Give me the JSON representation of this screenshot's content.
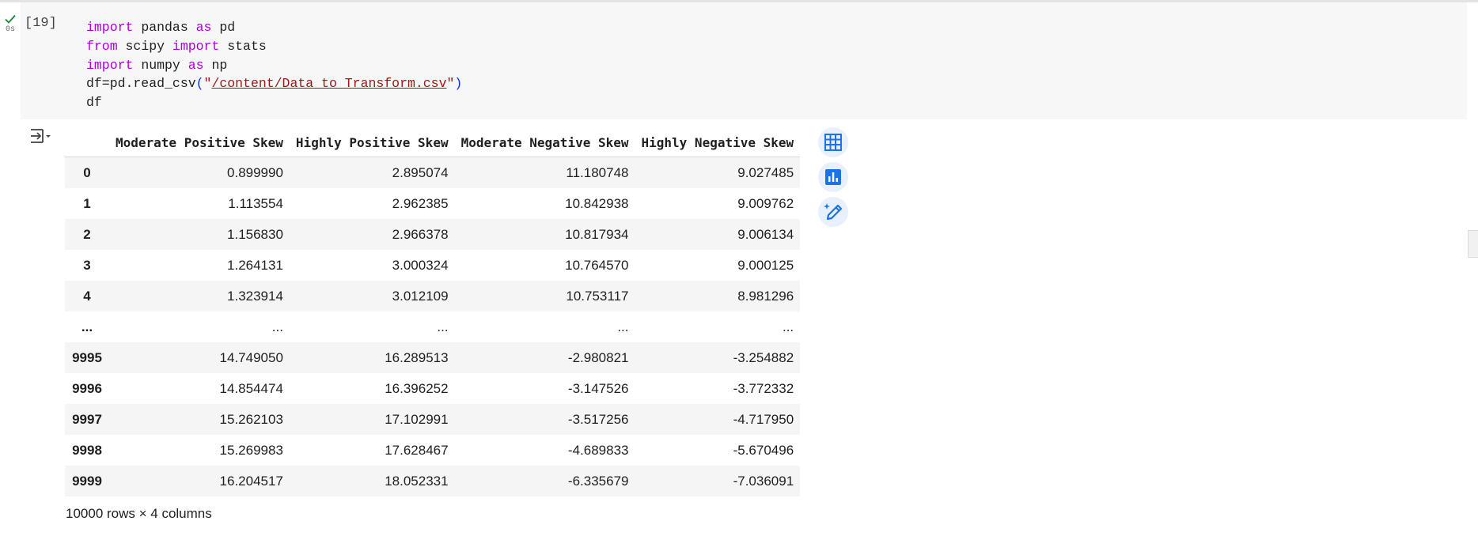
{
  "cell": {
    "status": "executed",
    "exec_time": "0s",
    "exec_count": "[19]",
    "code_lines": [
      {
        "parts": [
          {
            "t": "import",
            "k": "kw"
          },
          {
            "t": " pandas ",
            "k": "fn"
          },
          {
            "t": "as",
            "k": "kw"
          },
          {
            "t": " pd",
            "k": "fn"
          }
        ]
      },
      {
        "parts": [
          {
            "t": "from",
            "k": "kw"
          },
          {
            "t": " scipy ",
            "k": "fn"
          },
          {
            "t": "import",
            "k": "kw"
          },
          {
            "t": " stats",
            "k": "fn"
          }
        ]
      },
      {
        "parts": [
          {
            "t": "import",
            "k": "kw"
          },
          {
            "t": " numpy ",
            "k": "fn"
          },
          {
            "t": "as",
            "k": "kw"
          },
          {
            "t": " np",
            "k": "fn"
          }
        ]
      },
      {
        "parts": [
          {
            "t": "df=pd.read_csv",
            "k": "fn"
          },
          {
            "t": "(",
            "k": "paren"
          },
          {
            "t": "\"",
            "k": "strq"
          },
          {
            "t": "/content/Data_to_Transform.csv",
            "k": "str"
          },
          {
            "t": "\"",
            "k": "strq"
          },
          {
            "t": ")",
            "k": "paren"
          }
        ]
      },
      {
        "parts": [
          {
            "t": "df",
            "k": "fn"
          }
        ]
      }
    ]
  },
  "output": {
    "icon": "output-collapse-icon",
    "columns": [
      "",
      "Moderate Positive Skew",
      "Highly Positive Skew",
      "Moderate Negative Skew",
      "Highly Negative Skew"
    ],
    "rows": [
      [
        "0",
        "0.899990",
        "2.895074",
        "11.180748",
        "9.027485"
      ],
      [
        "1",
        "1.113554",
        "2.962385",
        "10.842938",
        "9.009762"
      ],
      [
        "2",
        "1.156830",
        "2.966378",
        "10.817934",
        "9.006134"
      ],
      [
        "3",
        "1.264131",
        "3.000324",
        "10.764570",
        "9.000125"
      ],
      [
        "4",
        "1.323914",
        "3.012109",
        "10.753117",
        "8.981296"
      ],
      [
        "...",
        "...",
        "...",
        "...",
        "..."
      ],
      [
        "9995",
        "14.749050",
        "16.289513",
        "-2.980821",
        "-3.254882"
      ],
      [
        "9996",
        "14.854474",
        "16.396252",
        "-3.147526",
        "-3.772332"
      ],
      [
        "9997",
        "15.262103",
        "17.102991",
        "-3.517256",
        "-4.717950"
      ],
      [
        "9998",
        "15.269983",
        "17.628467",
        "-4.689833",
        "-5.670496"
      ],
      [
        "9999",
        "16.204517",
        "18.052331",
        "-6.335679",
        "-7.036091"
      ]
    ],
    "summary": "10000 rows × 4 columns",
    "side_buttons": [
      "table-view-icon",
      "chart-suggest-icon",
      "magic-edit-icon"
    ]
  },
  "colors": {
    "accent": "#1a73e8",
    "button_bg": "#e8f0fe",
    "keyword": "#af00db",
    "string": "#a31515",
    "check": "#188038"
  }
}
